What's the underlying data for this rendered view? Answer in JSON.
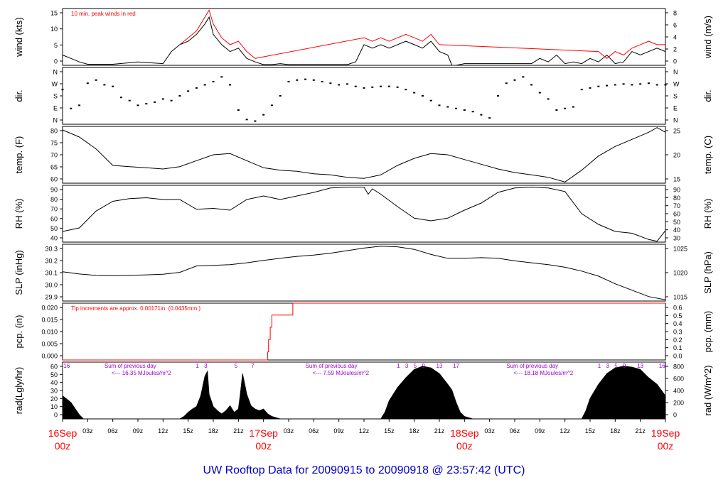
{
  "chart_data": {
    "title": "UW Rooftop Data for 20090915  to  20090918 @ 23:57:42  (UTC)",
    "x_axis": {
      "tick_labels": [
        "03z",
        "06z",
        "09z",
        "12z",
        "15z",
        "18z",
        "21z",
        "03z",
        "06z",
        "09z",
        "12z",
        "15z",
        "18z",
        "21z",
        "03z",
        "06z",
        "09z",
        "12z",
        "15z",
        "18z",
        "21z"
      ],
      "date_labels": [
        {
          "date": "16Sep",
          "time": "00z"
        },
        {
          "date": "17Sep",
          "time": "00z"
        },
        {
          "date": "18Sep",
          "time": "00z"
        },
        {
          "date": "19Sep",
          "time": "00z"
        }
      ],
      "range_hours": [
        0,
        72
      ]
    },
    "panels": [
      {
        "id": "wind",
        "type": "line",
        "ylabel_left": "wind (kts)",
        "ylabel_right": "wind (m/s)",
        "left_ticks": [
          "0",
          "5",
          "10",
          "15"
        ],
        "right_ticks": [
          "0",
          "2",
          "4",
          "6",
          "8"
        ],
        "annotation": "10 min. peak winds in red",
        "ylim": [
          0,
          16.5
        ],
        "series": [
          {
            "x": [
              0,
              1,
              2,
              3,
              6,
              9,
              12,
              13,
              14,
              15,
              16,
              17,
              17.5,
              18,
              19,
              20,
              21,
              22,
              23,
              24,
              25,
              26,
              27,
              34,
              35,
              36,
              37,
              38,
              39,
              40,
              41,
              42,
              43,
              44,
              45,
              46,
              46.5,
              47,
              48,
              56,
              57,
              58,
              59,
              60,
              61,
              62,
              63,
              64,
              65,
              66,
              67,
              68,
              69,
              70,
              71,
              72
            ],
            "y": [
              3,
              2,
              1,
              0.3,
              0.3,
              1,
              0.5,
              4,
              6,
              7,
              9,
              12,
              14,
              9,
              6,
              4,
              5,
              2,
              1,
              0.2,
              0.2,
              0.5,
              0.2,
              0.2,
              1,
              6,
              5,
              6,
              5,
              6,
              7,
              6,
              5,
              7,
              4,
              3,
              0,
              0,
              0.5,
              0.5,
              2,
              1,
              3,
              0.5,
              1,
              0.5,
              2,
              1,
              3,
              0.5,
              1,
              4,
              3,
              4,
              5,
              4
            ]
          },
          {
            "name": "10 min. peak winds",
            "color": "#ff0000",
            "x": [
              14,
              15,
              16,
              17,
              17.5,
              18,
              19,
              20,
              21,
              22,
              23,
              36,
              37,
              38,
              39,
              40,
              41,
              42,
              43,
              44,
              45,
              64,
              65,
              66,
              67,
              68,
              69,
              70,
              71,
              72
            ],
            "y": [
              6,
              8,
              10,
              14,
              16,
              12,
              8,
              6,
              7,
              4,
              2,
              8,
              7,
              8,
              7,
              8,
              9,
              8,
              7,
              9,
              6,
              4,
              2,
              4,
              3,
              5,
              6,
              7,
              6,
              6
            ]
          }
        ]
      },
      {
        "id": "dir",
        "type": "scatter",
        "ylabel_left": "dir.",
        "ylabel_right": "dir.",
        "left_ticks": [
          "N",
          "E",
          "S",
          "W",
          "N"
        ],
        "right_ticks": [
          "N",
          "E",
          "S",
          "W",
          "N"
        ],
        "ylim": [
          0,
          360
        ],
        "series": [
          {
            "x": [
              0,
              1,
              2,
              3,
              4,
              5,
              6,
              7,
              8,
              9,
              10,
              11,
              12,
              13,
              14,
              15,
              16,
              17,
              18,
              19,
              20,
              21,
              22,
              23,
              24,
              25,
              26,
              27,
              28,
              29,
              30,
              31,
              32,
              33,
              34,
              35,
              36,
              37,
              38,
              39,
              40,
              41,
              42,
              43,
              44,
              45,
              46,
              47,
              48,
              49,
              50,
              51,
              52,
              53,
              54,
              55,
              56,
              57,
              58,
              59,
              60,
              61,
              62,
              63,
              64,
              65,
              66,
              67,
              68,
              69,
              70,
              71,
              72
            ],
            "y": [
              220,
              100,
              120,
              260,
              280,
              250,
              240,
              170,
              150,
              120,
              130,
              140,
              160,
              150,
              180,
              210,
              230,
              250,
              270,
              300,
              250,
              90,
              30,
              20,
              60,
              120,
              180,
              270,
              280,
              285,
              280,
              270,
              260,
              250,
              255,
              240,
              230,
              235,
              240,
              240,
              235,
              220,
              200,
              180,
              150,
              120,
              110,
              100,
              90,
              80,
              60,
              40,
              180,
              260,
              280,
              300,
              250,
              200,
              160,
              90,
              100,
              110,
              220,
              230,
              240,
              245,
              250,
              255,
              250,
              255,
              260,
              250,
              250
            ]
          }
        ]
      },
      {
        "id": "temp",
        "type": "line",
        "ylabel_left": "temp. (F)",
        "ylabel_right": "temp. (C)",
        "left_ticks": [
          "60",
          "65",
          "70",
          "75",
          "80"
        ],
        "right_ticks": [
          "15",
          "20",
          "25"
        ],
        "ylim": [
          57.5,
          81.5
        ],
        "series": [
          {
            "x": [
              0,
              2,
              4,
              6,
              8,
              10,
              12,
              14,
              16,
              18,
              20,
              22,
              24,
              26,
              28,
              30,
              32,
              34,
              36,
              38,
              40,
              42,
              44,
              46,
              48,
              50,
              52,
              54,
              56,
              58,
              60,
              62,
              63,
              64,
              66,
              68,
              70,
              71,
              72
            ],
            "y": [
              80,
              77,
              72,
              65,
              64.5,
              64,
              63.5,
              64.5,
              67,
              69.5,
              70,
              67,
              64,
              63,
              62.5,
              61.5,
              61,
              60,
              59.5,
              61,
              65,
              68,
              70,
              69.5,
              67.5,
              65.5,
              63.5,
              62,
              61,
              60,
              58,
              63,
              66,
              69,
              73,
              76,
              79,
              81,
              79
            ]
          }
        ]
      },
      {
        "id": "rh",
        "type": "line",
        "ylabel_left": "RH (%)",
        "ylabel_right": "RH (%)",
        "left_ticks": [
          "40",
          "50",
          "60",
          "70",
          "80",
          "90"
        ],
        "right_ticks": [
          "30",
          "40",
          "50",
          "60",
          "70",
          "80",
          "90"
        ],
        "ylim": [
          28,
          92
        ],
        "series": [
          {
            "x": [
              0,
              2,
              4,
              6,
              8,
              10,
              12,
              14,
              16,
              18,
              20,
              22,
              24,
              26,
              28,
              30,
              32,
              34,
              36,
              36.5,
              37,
              38,
              40,
              42,
              44,
              46,
              48,
              50,
              52,
              54,
              56,
              58,
              60,
              62,
              64,
              66,
              68,
              70,
              71,
              71.5,
              72
            ],
            "y": [
              40,
              44,
              63,
              74,
              77,
              78,
              76,
              76,
              65,
              66,
              64,
              76,
              80,
              76,
              80,
              84,
              89,
              90,
              90,
              82,
              88,
              82,
              68,
              55,
              52,
              55,
              64,
              72,
              84,
              89,
              90,
              89,
              85,
              60,
              48,
              40,
              38,
              31,
              29,
              35,
              41
            ]
          }
        ]
      },
      {
        "id": "slp",
        "type": "line",
        "ylabel_left": "SLP (inHg)",
        "ylabel_right": "SLP (hPa)",
        "left_ticks": [
          "29.9",
          "30.0",
          "30.1",
          "30.2",
          "30.3"
        ],
        "right_ticks": [
          "1015",
          "1020",
          "1025"
        ],
        "ylim": [
          29.865,
          30.31
        ],
        "series": [
          {
            "x": [
              0,
              2,
              4,
              6,
              8,
              10,
              12,
              14,
              16,
              18,
              20,
              22,
              24,
              26,
              28,
              30,
              32,
              34,
              36,
              38,
              40,
              42,
              44,
              46,
              48,
              50,
              52,
              54,
              56,
              58,
              60,
              62,
              64,
              66,
              68,
              70,
              72
            ],
            "y": [
              30.095,
              30.077,
              30.066,
              30.063,
              30.066,
              30.07,
              30.075,
              30.09,
              30.14,
              30.145,
              30.15,
              30.165,
              30.183,
              30.2,
              30.215,
              30.225,
              30.24,
              30.26,
              30.28,
              30.295,
              30.29,
              30.27,
              30.23,
              30.2,
              30.2,
              30.205,
              30.2,
              30.18,
              30.165,
              30.15,
              30.13,
              30.1,
              30.06,
              30.0,
              29.95,
              29.9,
              29.875
            ]
          }
        ]
      },
      {
        "id": "pcp",
        "type": "line",
        "ylabel_left": "pcp. (in)",
        "ylabel_right": "pcp. (mm)",
        "left_ticks": [
          "0.000",
          "0.005",
          "0.010",
          "0.015",
          "0.020"
        ],
        "right_ticks": [
          "0.0",
          "0.1",
          "0.2",
          "0.3",
          "0.4",
          "0.5",
          "0.6"
        ],
        "annotation": "Tip increments are approx. 0.00171in. (0.0435mm.)",
        "ylim": [
          0,
          0.0238
        ],
        "series": [
          {
            "color": "#ff0000",
            "x": [
              0,
              24.5,
              24.5,
              24.6,
              24.6,
              24.8,
              24.8,
              25.0,
              25.0,
              25.3,
              25.3,
              27.5,
              27.5,
              72
            ],
            "y": [
              0,
              0,
              0.0034,
              0.0034,
              0.0086,
              0.0086,
              0.0137,
              0.0137,
              0.0188,
              0.0188,
              0.0188,
              0.0188,
              0.0238,
              0.0238
            ]
          }
        ]
      },
      {
        "id": "rad",
        "type": "area",
        "ylabel_left": "rad(Lgly/hr)",
        "ylabel_right": "rad (W/m^2)",
        "left_ticks": [
          "0",
          "10",
          "20",
          "30",
          "40",
          "50",
          "60"
        ],
        "right_ticks": [
          "0",
          "200",
          "400",
          "600",
          "800"
        ],
        "ylim": [
          0,
          69
        ],
        "annotations": [
          {
            "text": "Sum of previous day",
            "day": 0
          },
          {
            "text": "<--- 16.35 MJoules/m^2",
            "day": 0
          },
          {
            "text": "Sum of previous day",
            "day": 1
          },
          {
            "text": "<--- 7.59 MJoules/m^2",
            "day": 1
          },
          {
            "text": "Sum of previous day",
            "day": 2
          },
          {
            "text": "<--- 18.18 MJoules/m^2",
            "day": 2
          }
        ],
        "hour_labels": [
          {
            "text": "16",
            "x": 0.5
          },
          {
            "text": "1",
            "x": 16.1
          },
          {
            "text": "3",
            "x": 17.1
          },
          {
            "text": "5",
            "x": 20.7
          },
          {
            "text": "7",
            "x": 22.7
          },
          {
            "text": "1",
            "x": 40.1
          },
          {
            "text": "3",
            "x": 41.1
          },
          {
            "text": "5",
            "x": 42.1
          },
          {
            "text": "9",
            "x": 43.1
          },
          {
            "text": "13",
            "x": 45.0
          },
          {
            "text": "17",
            "x": 47.0
          },
          {
            "text": "1",
            "x": 64.1
          },
          {
            "text": "3",
            "x": 65.1
          },
          {
            "text": "5",
            "x": 66.1
          },
          {
            "text": "9",
            "x": 67.1
          },
          {
            "text": "13",
            "x": 69.0
          },
          {
            "text": "16",
            "x": 71.6
          }
        ],
        "series": [
          {
            "x": [
              0,
              1,
              2,
              2.5,
              14,
              14.5,
              15,
              15.5,
              16,
              16.5,
              17,
              17.3,
              17.5,
              18,
              18.5,
              19,
              19.5,
              20,
              20.5,
              21,
              21.2,
              21.5,
              21.8,
              22,
              22.5,
              23,
              23.5,
              24,
              24.5,
              25,
              26,
              38,
              38.5,
              39,
              40,
              41,
              42,
              43,
              44,
              45,
              46,
              46.5,
              47,
              47.5,
              48,
              49,
              50,
              62,
              62.5,
              63,
              64,
              65,
              66,
              67,
              68,
              69,
              70,
              71,
              71.5,
              72
            ],
            "y": [
              28,
              20,
              5,
              0,
              0,
              3,
              8,
              12,
              15,
              28,
              52,
              58,
              30,
              15,
              10,
              6,
              10,
              16,
              8,
              12,
              28,
              55,
              40,
              30,
              16,
              12,
              10,
              12,
              6,
              3,
              0,
              0,
              8,
              22,
              38,
              50,
              60,
              64,
              62,
              55,
              42,
              35,
              20,
              8,
              3,
              0,
              0,
              0,
              10,
              25,
              42,
              55,
              62,
              64,
              63,
              60,
              50,
              42,
              35,
              28
            ]
          }
        ]
      }
    ]
  }
}
